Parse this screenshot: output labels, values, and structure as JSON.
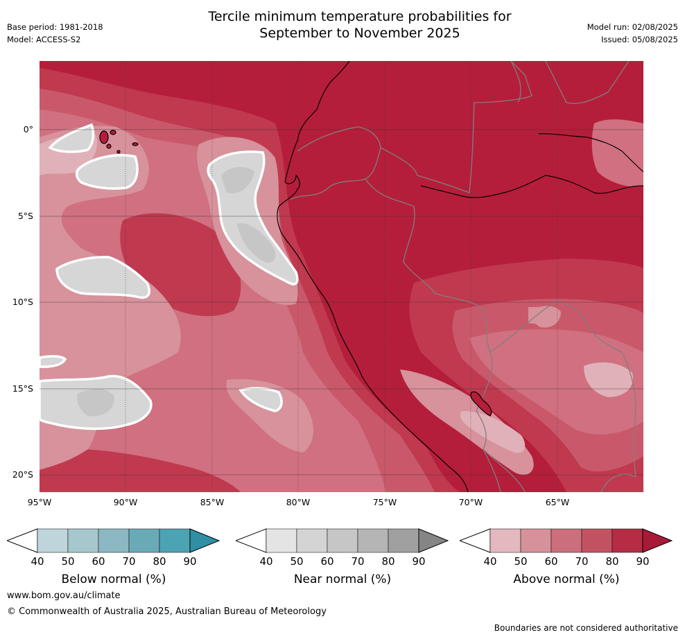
{
  "header": {
    "title_line1": "Tercile minimum temperature probabilities for",
    "title_line2": "September to November 2025",
    "base_period": "Base period: 1981-2018",
    "model": "Model: ACCESS-S2",
    "model_run": "Model run: 02/08/2025",
    "issued": "Issued: 05/08/2025"
  },
  "map": {
    "lat_labels": [
      "0°",
      "5°S",
      "10°S",
      "15°S",
      "20°S"
    ],
    "lon_labels": [
      "95°W",
      "90°W",
      "85°W",
      "80°W",
      "75°W",
      "70°W",
      "65°W"
    ],
    "background_color": "#b51e3a",
    "coastline_color": "#000000",
    "border_color": "#7f7f7f"
  },
  "colorbars": [
    {
      "caption": "Below normal (%)",
      "ticks": [
        "40",
        "50",
        "60",
        "70",
        "80",
        "90"
      ],
      "colors": [
        "#bdd5db",
        "#a6c7ce",
        "#8bb8c2",
        "#6aaab7",
        "#4ba3b3",
        "#2f8fa4"
      ]
    },
    {
      "caption": "Near normal (%)",
      "ticks": [
        "40",
        "50",
        "60",
        "70",
        "80",
        "90"
      ],
      "colors": [
        "#e4e4e4",
        "#d4d4d4",
        "#c6c6c6",
        "#b5b5b5",
        "#a0a0a0",
        "#858585"
      ]
    },
    {
      "caption": "Above normal (%)",
      "ticks": [
        "40",
        "50",
        "60",
        "70",
        "80",
        "90"
      ],
      "colors": [
        "#e4b8bf",
        "#d6919b",
        "#cc6f7c",
        "#c25262",
        "#b62c45",
        "#a81a37"
      ]
    }
  ],
  "footer": {
    "website": "www.bom.gov.au/climate",
    "copyright": "© Commonwealth of Australia 2025, Australian Bureau of Meteorology",
    "disclaimer": "Boundaries are not considered authoritative"
  }
}
